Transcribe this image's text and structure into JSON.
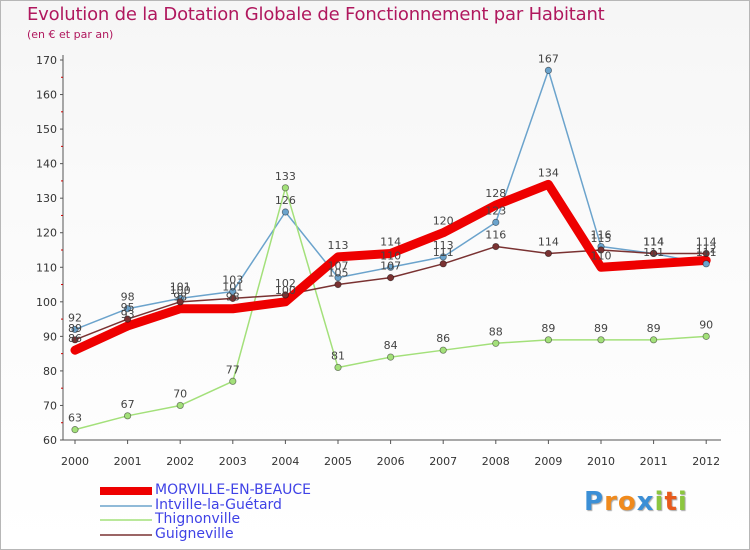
{
  "header": {
    "title": "Evolution de la Dotation Globale de Fonctionnement par Habitant",
    "subtitle": "(en € et par an)"
  },
  "chart_data": {
    "type": "line",
    "title": "Evolution de la Dotation Globale de Fonctionnement par Habitant",
    "subtitle": "(en € et par an)",
    "xlabel": "",
    "ylabel": "",
    "ylim": [
      60,
      170
    ],
    "ytick_step": 10,
    "grid": false,
    "x": [
      "2000",
      "2001",
      "2002",
      "2003",
      "2004",
      "2005",
      "2006",
      "2007",
      "2008",
      "2009",
      "2010",
      "2011",
      "2012"
    ],
    "series": [
      {
        "name": "MORVILLE-EN-BEAUCE",
        "color": "#ee0000",
        "values": [
          86,
          93,
          98,
          98,
          100,
          113,
          114,
          120,
          128,
          134,
          110,
          111,
          112
        ],
        "labels": [
          "86",
          "93",
          "98",
          "98",
          "100",
          "113",
          "114",
          "120",
          "128",
          "134",
          "110",
          "111",
          "112"
        ]
      },
      {
        "name": "Intville-la-Guétard",
        "color": "#6ba3cc",
        "values": [
          92,
          98,
          101,
          103,
          126,
          107,
          110,
          113,
          123,
          167,
          116,
          114,
          111
        ],
        "labels": [
          "92",
          "98",
          "101",
          "103",
          "126",
          "107",
          "110",
          "113",
          "123",
          "167",
          "116",
          "114",
          "111"
        ]
      },
      {
        "name": "Thignonville",
        "color": "#a3e07a",
        "values": [
          63,
          67,
          70,
          77,
          133,
          81,
          84,
          86,
          88,
          89,
          89,
          89,
          90
        ],
        "labels": [
          "63",
          "67",
          "70",
          "77",
          "133",
          "81",
          "84",
          "86",
          "88",
          "89",
          "89",
          "89",
          "90"
        ]
      },
      {
        "name": "Guigneville",
        "color": "#7a3232",
        "values": [
          89,
          95,
          100,
          101,
          102,
          105,
          107,
          111,
          116,
          114,
          115,
          114,
          114
        ],
        "labels": [
          "89",
          "95",
          "100",
          "101",
          "102",
          "105",
          "107",
          "111",
          "116",
          "114",
          "115",
          "114",
          "114"
        ]
      }
    ]
  },
  "branding": {
    "logo_letters": [
      "P",
      "r",
      "o",
      "x",
      "i",
      "t",
      "i"
    ],
    "logo_colors": [
      "#3b8fd6",
      "#f08a1c",
      "#f08a1c",
      "#3b8fd6",
      "#8cc63f",
      "#e85a1c",
      "#8cc63f"
    ]
  }
}
